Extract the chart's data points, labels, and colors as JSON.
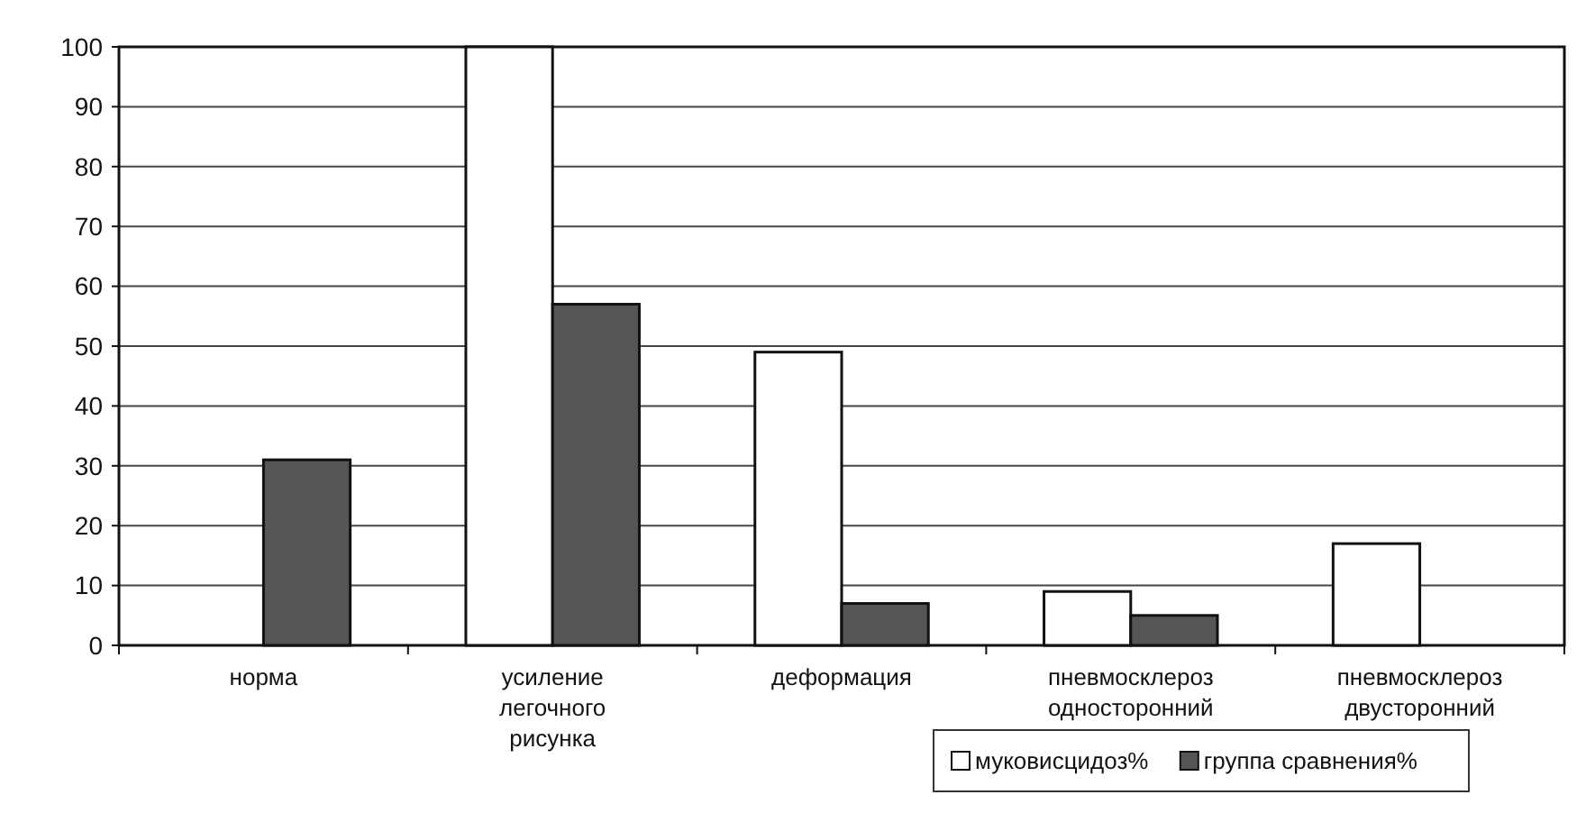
{
  "chart_data": {
    "type": "bar",
    "categories": [
      "норма",
      "усиление легочного рисунка",
      "деформация",
      "пневмосклероз односторонний",
      "пневмосклероз двусторонний"
    ],
    "series": [
      {
        "name": "муковисцидоз%",
        "color": "#ffffff",
        "values": [
          0,
          100,
          49,
          9,
          17
        ]
      },
      {
        "name": "группа сравнения%",
        "color": "#555555",
        "values": [
          31,
          57,
          7,
          5,
          0
        ]
      }
    ],
    "ylim": [
      0,
      100
    ],
    "yticks": [
      0,
      10,
      20,
      30,
      40,
      50,
      60,
      70,
      80,
      90,
      100
    ],
    "grid": "y",
    "legend": "bottom right"
  }
}
